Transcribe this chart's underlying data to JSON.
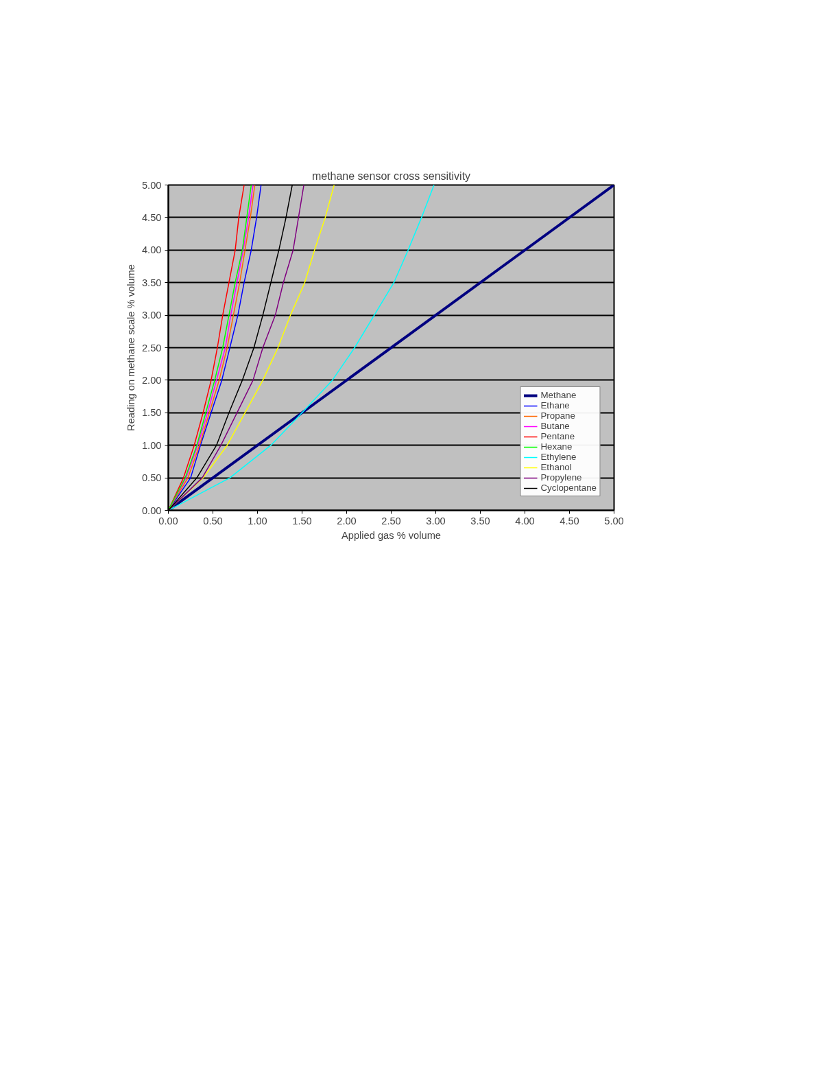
{
  "chart_data": {
    "type": "line",
    "title": "methane sensor cross sensitivity",
    "xlabel": "Applied gas % volume",
    "ylabel": "Reading on methane scale % volume",
    "xlim": [
      0,
      5
    ],
    "ylim": [
      0,
      5
    ],
    "xticks": [
      {
        "value": 0,
        "label": "0.00"
      },
      {
        "value": 0.5,
        "label": "0.50"
      },
      {
        "value": 1,
        "label": "1.00"
      },
      {
        "value": 1.5,
        "label": "1.50"
      },
      {
        "value": 2,
        "label": "2.00"
      },
      {
        "value": 2.5,
        "label": "2.50"
      },
      {
        "value": 3,
        "label": "3.00"
      },
      {
        "value": 3.5,
        "label": "3.50"
      },
      {
        "value": 4,
        "label": "4.00"
      },
      {
        "value": 4.5,
        "label": "4.50"
      },
      {
        "value": 5,
        "label": "5.00"
      }
    ],
    "yticks": [
      {
        "value": 0,
        "label": "0.00"
      },
      {
        "value": 0.5,
        "label": "0.50"
      },
      {
        "value": 1,
        "label": "1.00"
      },
      {
        "value": 1.5,
        "label": "1.50"
      },
      {
        "value": 2,
        "label": "2.00"
      },
      {
        "value": 2.5,
        "label": "2.50"
      },
      {
        "value": 3,
        "label": "3.00"
      },
      {
        "value": 3.5,
        "label": "3.50"
      },
      {
        "value": 4,
        "label": "4.00"
      },
      {
        "value": 4.5,
        "label": "4.50"
      },
      {
        "value": 5,
        "label": "5.00"
      }
    ],
    "grid": "y",
    "legend": "bottom right",
    "marker": "none",
    "line_style": "solid",
    "series": [
      {
        "name": "Methane",
        "color": "#000080",
        "x": [
          0,
          5
        ],
        "values": [
          0,
          5
        ]
      },
      {
        "name": "Ethane",
        "color": "#0000ff",
        "x": [
          0,
          0.25,
          0.36,
          0.48,
          0.6,
          0.69,
          0.78,
          0.85,
          0.93,
          0.99,
          1.04
        ],
        "values": [
          0,
          0.5,
          1,
          1.5,
          2,
          2.5,
          3,
          3.5,
          4,
          4.5,
          5
        ]
      },
      {
        "name": "Propane",
        "color": "#ff6600",
        "x": [
          0,
          0.22,
          0.35,
          0.46,
          0.57,
          0.66,
          0.73,
          0.8,
          0.86,
          0.92,
          0.97
        ],
        "values": [
          0,
          0.5,
          1,
          1.5,
          2,
          2.5,
          3,
          3.5,
          4,
          4.5,
          5
        ]
      },
      {
        "name": "Butane",
        "color": "#ff00ff",
        "x": [
          0,
          0.2,
          0.33,
          0.44,
          0.54,
          0.64,
          0.7,
          0.77,
          0.84,
          0.9,
          0.95
        ],
        "values": [
          0,
          0.5,
          1,
          1.5,
          2,
          2.5,
          3,
          3.5,
          4,
          4.5,
          5
        ]
      },
      {
        "name": "Pentane",
        "color": "#ff0000",
        "x": [
          0,
          0.17,
          0.29,
          0.39,
          0.48,
          0.55,
          0.61,
          0.68,
          0.75,
          0.79,
          0.85
        ],
        "values": [
          0,
          0.5,
          1,
          1.5,
          2,
          2.5,
          3,
          3.5,
          4,
          4.5,
          5
        ]
      },
      {
        "name": "Hexane",
        "color": "#00ff00",
        "x": [
          0,
          0.19,
          0.32,
          0.42,
          0.52,
          0.61,
          0.68,
          0.75,
          0.83,
          0.88,
          0.93
        ],
        "values": [
          0,
          0.5,
          1,
          1.5,
          2,
          2.5,
          3,
          3.5,
          4,
          4.5,
          5
        ]
      },
      {
        "name": "Ethylene",
        "color": "#00ffff",
        "x": [
          0,
          0.69,
          1.15,
          1.5,
          1.84,
          2.09,
          2.31,
          2.53,
          2.69,
          2.84,
          2.98
        ],
        "values": [
          0,
          0.5,
          1,
          1.5,
          2,
          2.5,
          3,
          3.5,
          4,
          4.5,
          5
        ]
      },
      {
        "name": "Ethanol",
        "color": "#ffff00",
        "x": [
          0,
          0.39,
          0.66,
          0.86,
          1.06,
          1.23,
          1.37,
          1.53,
          1.64,
          1.76,
          1.86
        ],
        "values": [
          0,
          0.5,
          1,
          1.5,
          2,
          2.5,
          3,
          3.5,
          4,
          4.5,
          5
        ]
      },
      {
        "name": "Propylene",
        "color": "#800080",
        "x": [
          0,
          0.38,
          0.59,
          0.77,
          0.95,
          1.06,
          1.2,
          1.29,
          1.4,
          1.46,
          1.52
        ],
        "values": [
          0,
          0.5,
          1,
          1.5,
          2,
          2.5,
          3,
          3.5,
          4,
          4.5,
          5
        ]
      },
      {
        "name": "Cyclopentane",
        "color": "#000000",
        "x": [
          0,
          0.32,
          0.54,
          0.68,
          0.83,
          0.96,
          1.06,
          1.15,
          1.24,
          1.32,
          1.39
        ],
        "values": [
          0,
          0.5,
          1,
          1.5,
          2,
          2.5,
          3,
          3.5,
          4,
          4.5,
          5
        ]
      }
    ]
  }
}
